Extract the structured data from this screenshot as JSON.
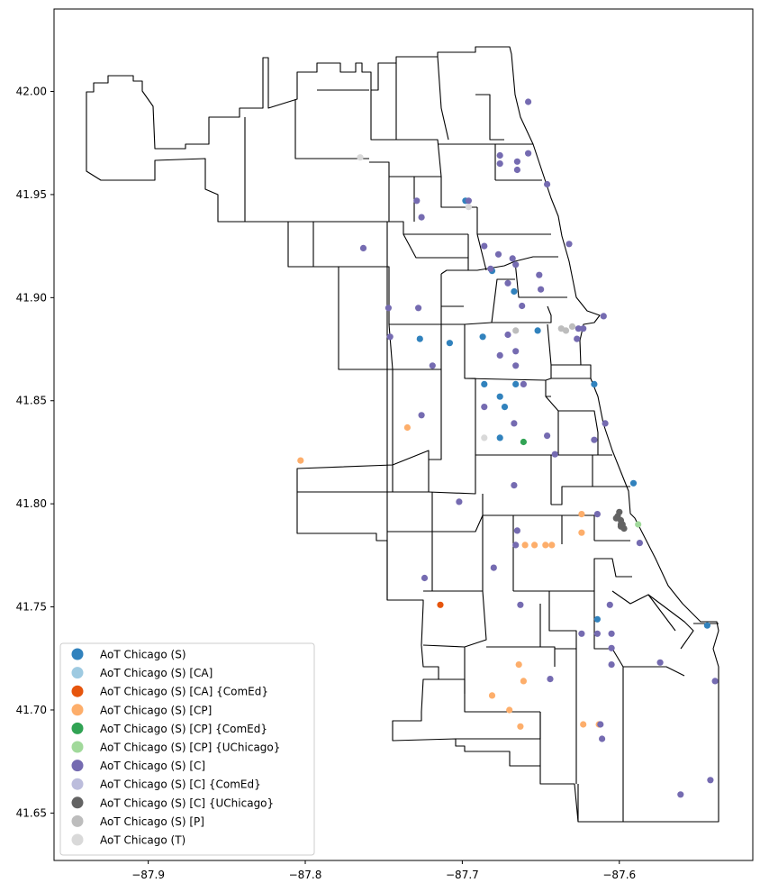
{
  "chart_data": {
    "type": "scatter",
    "title": "",
    "xlabel": "",
    "ylabel": "",
    "xlim": [
      -87.96,
      -87.515
    ],
    "ylim": [
      41.627,
      42.04
    ],
    "xticks": [
      -87.9,
      -87.8,
      -87.7,
      -87.6
    ],
    "xtick_labels": [
      "−87.9",
      "−87.8",
      "−87.7",
      "−87.6"
    ],
    "yticks": [
      41.65,
      41.7,
      41.75,
      41.8,
      41.85,
      41.9,
      41.95,
      42.0
    ],
    "ytick_labels": [
      "41.65",
      "41.70",
      "41.75",
      "41.80",
      "41.85",
      "41.90",
      "41.95",
      "42.00"
    ],
    "grid": false,
    "legend_placement": "lower-left",
    "series": [
      {
        "name": "AoT Chicago (S)",
        "color": "#3182bd",
        "points": [
          [
            -87.698,
            41.947
          ],
          [
            -87.681,
            41.913
          ],
          [
            -87.667,
            41.903
          ],
          [
            -87.727,
            41.88
          ],
          [
            -87.708,
            41.878
          ],
          [
            -87.687,
            41.881
          ],
          [
            -87.652,
            41.884
          ],
          [
            -87.686,
            41.858
          ],
          [
            -87.676,
            41.852
          ],
          [
            -87.673,
            41.847
          ],
          [
            -87.666,
            41.858
          ],
          [
            -87.676,
            41.832
          ],
          [
            -87.616,
            41.858
          ],
          [
            -87.591,
            41.81
          ],
          [
            -87.614,
            41.744
          ],
          [
            -87.544,
            41.741
          ]
        ]
      },
      {
        "name": "AoT Chicago (S) [CA]",
        "color": "#9ecae1",
        "points": []
      },
      {
        "name": "AoT Chicago (S) [CA] {ComEd}",
        "color": "#e6550d",
        "points": [
          [
            -87.714,
            41.751
          ]
        ]
      },
      {
        "name": "AoT Chicago (S) [CP]",
        "color": "#fdae6b",
        "points": [
          [
            -87.735,
            41.837
          ],
          [
            -87.803,
            41.821
          ],
          [
            -87.624,
            41.795
          ],
          [
            -87.624,
            41.786
          ],
          [
            -87.66,
            41.78
          ],
          [
            -87.654,
            41.78
          ],
          [
            -87.647,
            41.78
          ],
          [
            -87.643,
            41.78
          ],
          [
            -87.664,
            41.722
          ],
          [
            -87.661,
            41.714
          ],
          [
            -87.681,
            41.707
          ],
          [
            -87.67,
            41.7
          ],
          [
            -87.663,
            41.692
          ],
          [
            -87.623,
            41.693
          ],
          [
            -87.613,
            41.693
          ]
        ]
      },
      {
        "name": "AoT Chicago (S) [CP] {ComEd}",
        "color": "#31a354",
        "points": [
          [
            -87.661,
            41.83
          ]
        ]
      },
      {
        "name": "AoT Chicago (S) [CP] {UChicago}",
        "color": "#a1d99b",
        "points": [
          [
            -87.588,
            41.79
          ]
        ]
      },
      {
        "name": "AoT Chicago (S) [C]",
        "color": "#756bb1",
        "points": [
          [
            -87.658,
            41.995
          ],
          [
            -87.676,
            41.969
          ],
          [
            -87.676,
            41.965
          ],
          [
            -87.665,
            41.966
          ],
          [
            -87.658,
            41.97
          ],
          [
            -87.665,
            41.962
          ],
          [
            -87.646,
            41.955
          ],
          [
            -87.729,
            41.947
          ],
          [
            -87.696,
            41.947
          ],
          [
            -87.726,
            41.939
          ],
          [
            -87.763,
            41.924
          ],
          [
            -87.686,
            41.925
          ],
          [
            -87.677,
            41.921
          ],
          [
            -87.682,
            41.914
          ],
          [
            -87.668,
            41.919
          ],
          [
            -87.666,
            41.916
          ],
          [
            -87.632,
            41.926
          ],
          [
            -87.671,
            41.907
          ],
          [
            -87.651,
            41.911
          ],
          [
            -87.65,
            41.904
          ],
          [
            -87.662,
            41.896
          ],
          [
            -87.728,
            41.895
          ],
          [
            -87.747,
            41.895
          ],
          [
            -87.746,
            41.881
          ],
          [
            -87.671,
            41.882
          ],
          [
            -87.666,
            41.874
          ],
          [
            -87.676,
            41.872
          ],
          [
            -87.666,
            41.867
          ],
          [
            -87.719,
            41.867
          ],
          [
            -87.626,
            41.885
          ],
          [
            -87.627,
            41.88
          ],
          [
            -87.623,
            41.885
          ],
          [
            -87.661,
            41.858
          ],
          [
            -87.686,
            41.847
          ],
          [
            -87.726,
            41.843
          ],
          [
            -87.667,
            41.839
          ],
          [
            -87.646,
            41.833
          ],
          [
            -87.609,
            41.839
          ],
          [
            -87.616,
            41.831
          ],
          [
            -87.641,
            41.824
          ],
          [
            -87.702,
            41.801
          ],
          [
            -87.667,
            41.809
          ],
          [
            -87.665,
            41.787
          ],
          [
            -87.666,
            41.78
          ],
          [
            -87.614,
            41.795
          ],
          [
            -87.587,
            41.781
          ],
          [
            -87.724,
            41.764
          ],
          [
            -87.68,
            41.769
          ],
          [
            -87.663,
            41.751
          ],
          [
            -87.606,
            41.751
          ],
          [
            -87.605,
            41.737
          ],
          [
            -87.614,
            41.737
          ],
          [
            -87.624,
            41.737
          ],
          [
            -87.605,
            41.73
          ],
          [
            -87.605,
            41.722
          ],
          [
            -87.644,
            41.715
          ],
          [
            -87.574,
            41.723
          ],
          [
            -87.539,
            41.714
          ],
          [
            -87.612,
            41.693
          ],
          [
            -87.611,
            41.686
          ],
          [
            -87.561,
            41.659
          ],
          [
            -87.542,
            41.666
          ],
          [
            -87.61,
            41.891
          ]
        ]
      },
      {
        "name": "AoT Chicago (S) [C] {ComEd}",
        "color": "#bcbddc",
        "points": []
      },
      {
        "name": "AoT Chicago (S) [C] {UChicago}",
        "color": "#636363",
        "points": [
          [
            -87.602,
            41.793
          ],
          [
            -87.6,
            41.796
          ],
          [
            -87.599,
            41.792
          ],
          [
            -87.598,
            41.79
          ],
          [
            -87.599,
            41.789
          ],
          [
            -87.597,
            41.788
          ],
          [
            -87.601,
            41.794
          ],
          [
            -87.599,
            41.79
          ]
        ]
      },
      {
        "name": "AoT Chicago (S) [P]",
        "color": "#bdbdbd",
        "points": [
          [
            -87.666,
            41.884
          ],
          [
            -87.637,
            41.885
          ],
          [
            -87.634,
            41.884
          ],
          [
            -87.63,
            41.886
          ]
        ]
      },
      {
        "name": "AoT Chicago (T)",
        "color": "#d9d9d9",
        "points": [
          [
            -87.765,
            41.968
          ],
          [
            -87.696,
            41.944
          ],
          [
            -87.686,
            41.832
          ]
        ]
      }
    ]
  }
}
